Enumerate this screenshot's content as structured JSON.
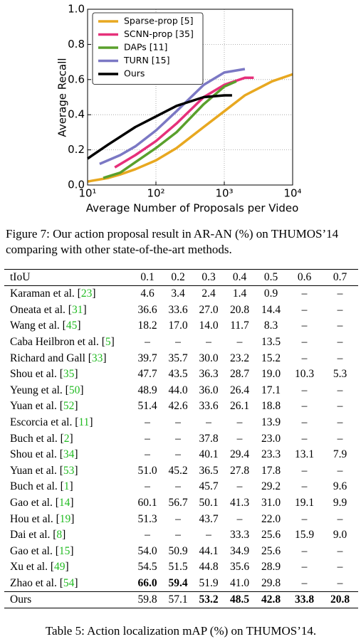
{
  "chart_data": {
    "type": "line",
    "xlabel": "Average Number of Proposals per Video",
    "ylabel": "Average Recall",
    "xscale": "log",
    "grid": true,
    "legend": "upper left",
    "xlim": [
      10,
      10000
    ],
    "xticks": [
      {
        "value": 10,
        "label": "10¹"
      },
      {
        "value": 100,
        "label": "10²"
      },
      {
        "value": 1000,
        "label": "10³"
      },
      {
        "value": 10000,
        "label": "10⁴"
      }
    ],
    "ylim": [
      0,
      1
    ],
    "yticks": [
      {
        "value": 0,
        "label": "0.0"
      },
      {
        "value": 0.2,
        "label": "0.2"
      },
      {
        "value": 0.4,
        "label": "0.4"
      },
      {
        "value": 0.6,
        "label": "0.6"
      },
      {
        "value": 0.8,
        "label": "0.8"
      },
      {
        "value": 1,
        "label": "1.0"
      }
    ],
    "series": [
      {
        "name": "Sparse-prop [5]",
        "color": "#e8a820",
        "x": [
          10,
          20,
          30,
          50,
          100,
          200,
          500,
          1000,
          2000,
          5000,
          10000
        ],
        "values": [
          0.02,
          0.04,
          0.06,
          0.09,
          0.14,
          0.21,
          0.33,
          0.42,
          0.51,
          0.59,
          0.63
        ]
      },
      {
        "name": "SCNN-prop [35]",
        "color": "#e6307a",
        "x": [
          25,
          50,
          100,
          200,
          500,
          1000,
          2000,
          2700
        ],
        "values": [
          0.1,
          0.17,
          0.25,
          0.35,
          0.5,
          0.57,
          0.61,
          0.61
        ]
      },
      {
        "name": "DAPs [11]",
        "color": "#5aa02c",
        "x": [
          17,
          30,
          50,
          100,
          200,
          500,
          1000,
          1500
        ],
        "values": [
          0.04,
          0.07,
          0.13,
          0.21,
          0.3,
          0.46,
          0.56,
          0.59
        ]
      },
      {
        "name": "TURN [15]",
        "color": "#7b78c4",
        "x": [
          15,
          30,
          50,
          100,
          200,
          500,
          1000,
          2000
        ],
        "values": [
          0.12,
          0.17,
          0.22,
          0.31,
          0.42,
          0.57,
          0.64,
          0.66
        ]
      },
      {
        "name": "Ours",
        "color": "#000000",
        "x": [
          10,
          20,
          50,
          100,
          200,
          500,
          1000,
          1300
        ],
        "values": [
          0.15,
          0.23,
          0.33,
          0.39,
          0.45,
          0.5,
          0.51,
          0.51
        ]
      }
    ]
  },
  "figure_caption": "Figure 7:  Our action proposal result in AR-AN (%) on THUMOS’14 comparing with other state-of-the-art methods.",
  "table": {
    "header": [
      "tIoU",
      "0.1",
      "0.2",
      "0.3",
      "0.4",
      "0.5",
      "0.6",
      "0.7"
    ],
    "rows": [
      [
        "Karaman et al. [23]",
        "4.6",
        "3.4",
        "2.4",
        "1.4",
        "0.9",
        "–",
        "–"
      ],
      [
        "Oneata et al. [31]",
        "36.6",
        "33.6",
        "27.0",
        "20.8",
        "14.4",
        "–",
        "–"
      ],
      [
        "Wang et al. [45]",
        "18.2",
        "17.0",
        "14.0",
        "11.7",
        "8.3",
        "–",
        "–"
      ],
      [
        "Caba Heilbron et al. [5]",
        "–",
        "–",
        "–",
        "–",
        "13.5",
        "–",
        "–"
      ],
      [
        "Richard and Gall [33]",
        "39.7",
        "35.7",
        "30.0",
        "23.2",
        "15.2",
        "–",
        "–"
      ],
      [
        "Shou et al. [35]",
        "47.7",
        "43.5",
        "36.3",
        "28.7",
        "19.0",
        "10.3",
        "5.3"
      ],
      [
        "Yeung et al. [50]",
        "48.9",
        "44.0",
        "36.0",
        "26.4",
        "17.1",
        "–",
        "–"
      ],
      [
        "Yuan et al. [52]",
        "51.4",
        "42.6",
        "33.6",
        "26.1",
        "18.8",
        "–",
        "–"
      ],
      [
        "Escorcia et al. [11]",
        "–",
        "–",
        "–",
        "–",
        "13.9",
        "–",
        "–"
      ],
      [
        "Buch et al. [2]",
        "–",
        "–",
        "37.8",
        "–",
        "23.0",
        "–",
        "–"
      ],
      [
        "Shou et al. [34]",
        "–",
        "–",
        "40.1",
        "29.4",
        "23.3",
        "13.1",
        "7.9"
      ],
      [
        "Yuan et al. [53]",
        "51.0",
        "45.2",
        "36.5",
        "27.8",
        "17.8",
        "–",
        "–"
      ],
      [
        "Buch et al. [1]",
        "–",
        "–",
        "45.7",
        "–",
        "29.2",
        "–",
        "9.6"
      ],
      [
        "Gao et al. [14]",
        "60.1",
        "56.7",
        "50.1",
        "41.3",
        "31.0",
        "19.1",
        "9.9"
      ],
      [
        "Hou et al. [19]",
        "51.3",
        "–",
        "43.7",
        "–",
        "22.0",
        "–",
        "–"
      ],
      [
        "Dai et al. [8]",
        "–",
        "–",
        "–",
        "33.3",
        "25.6",
        "15.9",
        "9.0"
      ],
      [
        "Gao et al. [15]",
        "54.0",
        "50.9",
        "44.1",
        "34.9",
        "25.6",
        "–",
        "–"
      ],
      [
        "Xu et al. [49]",
        "54.5",
        "51.5",
        "44.8",
        "35.6",
        "28.9",
        "–",
        "–"
      ],
      [
        "Zhao et al. [54]",
        "66.0",
        "59.4",
        "51.9",
        "41.0",
        "29.8",
        "–",
        "–"
      ]
    ],
    "bold": [
      [
        18,
        1
      ],
      [
        18,
        2
      ]
    ],
    "footer": [
      "Ours",
      "59.8",
      "57.1",
      "53.2",
      "48.5",
      "42.8",
      "33.8",
      "20.8"
    ],
    "footer_bold": [
      3,
      4,
      5,
      6,
      7
    ],
    "caption": "Table 5: Action localization mAP (%) on THUMOS’14."
  }
}
